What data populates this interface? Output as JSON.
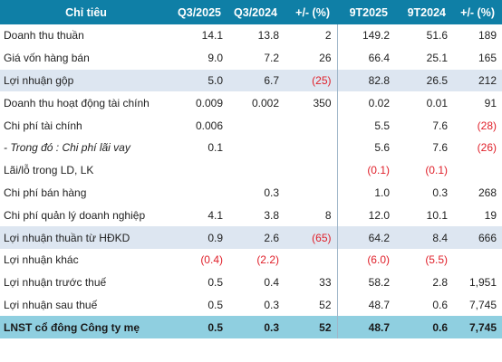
{
  "headers": [
    "Chỉ tiêu",
    "Q3/2025",
    "Q3/2024",
    "+/- (%)",
    "9T2025",
    "9T2024",
    "+/- (%)"
  ],
  "rows": [
    {
      "label": "Doanh thu thuần",
      "q3_2025": "14.1",
      "q3_2024": "13.8",
      "q_change": "2",
      "t9_2025": "149.2",
      "t9_2024": "51.6",
      "t9_change": "189",
      "style": "normal"
    },
    {
      "label": "Giá vốn hàng bán",
      "q3_2025": "9.0",
      "q3_2024": "7.2",
      "q_change": "26",
      "t9_2025": "66.4",
      "t9_2024": "25.1",
      "t9_change": "165",
      "style": "normal"
    },
    {
      "label": "Lợi nhuận gộp",
      "q3_2025": "5.0",
      "q3_2024": "6.7",
      "q_change": "(25)",
      "t9_2025": "82.8",
      "t9_2024": "26.5",
      "t9_change": "212",
      "style": "highlight"
    },
    {
      "label": "Doanh thu hoạt động tài chính",
      "q3_2025": "0.009",
      "q3_2024": "0.002",
      "q_change": "350",
      "t9_2025": "0.02",
      "t9_2024": "0.01",
      "t9_change": "91",
      "style": "normal"
    },
    {
      "label": "Chi phí tài chính",
      "q3_2025": "0.006",
      "q3_2024": "",
      "q_change": "",
      "t9_2025": "5.5",
      "t9_2024": "7.6",
      "t9_change": "(28)",
      "style": "normal"
    },
    {
      "label": "- Trong đó : Chi phí lãi vay",
      "q3_2025": "0.1",
      "q3_2024": "",
      "q_change": "",
      "t9_2025": "5.6",
      "t9_2024": "7.6",
      "t9_change": "(26)",
      "style": "italic"
    },
    {
      "label": "Lãi/lỗ trong LD, LK",
      "q3_2025": "",
      "q3_2024": "",
      "q_change": "",
      "t9_2025": "(0.1)",
      "t9_2024": "(0.1)",
      "t9_change": "",
      "style": "normal"
    },
    {
      "label": "Chi phí bán hàng",
      "q3_2025": "",
      "q3_2024": "0.3",
      "q_change": "",
      "t9_2025": "1.0",
      "t9_2024": "0.3",
      "t9_change": "268",
      "style": "normal"
    },
    {
      "label": "Chi phí quản lý doanh nghiệp",
      "q3_2025": "4.1",
      "q3_2024": "3.8",
      "q_change": "8",
      "t9_2025": "12.0",
      "t9_2024": "10.1",
      "t9_change": "19",
      "style": "normal"
    },
    {
      "label": "Lợi nhuận thuần từ HĐKD",
      "q3_2025": "0.9",
      "q3_2024": "2.6",
      "q_change": "(65)",
      "t9_2025": "64.2",
      "t9_2024": "8.4",
      "t9_change": "666",
      "style": "highlight"
    },
    {
      "label": "Lợi nhuận khác",
      "q3_2025": "(0.4)",
      "q3_2024": "(2.2)",
      "q_change": "",
      "t9_2025": "(6.0)",
      "t9_2024": "(5.5)",
      "t9_change": "",
      "style": "normal"
    },
    {
      "label": "Lợi nhuận trước thuế",
      "q3_2025": "0.5",
      "q3_2024": "0.4",
      "q_change": "33",
      "t9_2025": "58.2",
      "t9_2024": "2.8",
      "t9_change": "1,951",
      "style": "normal"
    },
    {
      "label": "Lợi nhuận sau thuế",
      "q3_2025": "0.5",
      "q3_2024": "0.3",
      "q_change": "52",
      "t9_2025": "48.7",
      "t9_2024": "0.6",
      "t9_change": "7,745",
      "style": "normal"
    },
    {
      "label": "LNST cổ đông Công ty mẹ",
      "q3_2025": "0.5",
      "q3_2024": "0.3",
      "q_change": "52",
      "t9_2025": "48.7",
      "t9_2024": "0.6",
      "t9_change": "7,745",
      "style": "total"
    }
  ],
  "colors": {
    "header_bg": "#0f7fa6",
    "highlight_bg": "#dde6f1",
    "total_bg": "#8fcfe0",
    "negative_text": "#e0202a"
  }
}
